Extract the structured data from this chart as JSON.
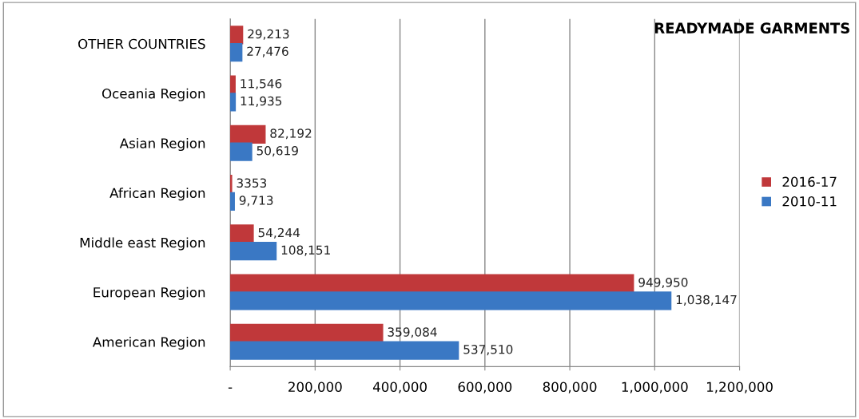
{
  "chart_data": {
    "type": "bar",
    "orientation": "horizontal",
    "title": "READYMADE GARMENTS",
    "categories": [
      "OTHER COUNTRIES",
      "Oceania Region",
      "Asian Region",
      "African Region",
      "Middle east Region",
      "European Region",
      "American Region"
    ],
    "series": [
      {
        "name": "2016-17",
        "color": "#c0383a",
        "values": [
          29213,
          11546,
          82192,
          3353,
          54244,
          949950,
          359084
        ],
        "value_labels": [
          "29,213",
          "11,546",
          "82,192",
          "3353",
          "54,244",
          "949,950",
          "359,084"
        ]
      },
      {
        "name": "2010-11",
        "color": "#3a78c4",
        "values": [
          27476,
          11935,
          50619,
          9713,
          108151,
          1038147,
          537510
        ],
        "value_labels": [
          "27,476",
          "11,935",
          "50,619",
          "9,713",
          "108,151",
          "1,038,147",
          "537,510"
        ]
      }
    ],
    "xlim": [
      0,
      1200000
    ],
    "xticks": [
      {
        "value": 0,
        "label": "-"
      },
      {
        "value": 200000,
        "label": "200,000"
      },
      {
        "value": 400000,
        "label": "400,000"
      },
      {
        "value": 600000,
        "label": "600,000"
      },
      {
        "value": 800000,
        "label": "800,000"
      },
      {
        "value": 1000000,
        "label": "1,000,000"
      },
      {
        "value": 1200000,
        "label": "1,200,000"
      }
    ],
    "grid": "x",
    "legend": "right"
  }
}
